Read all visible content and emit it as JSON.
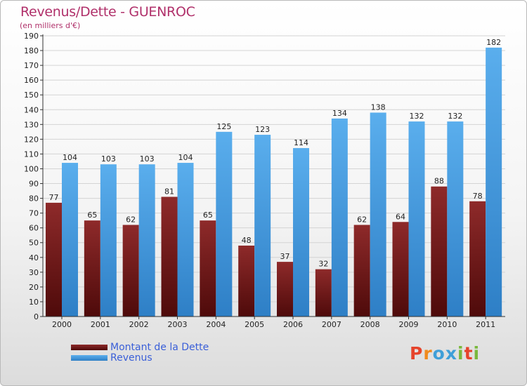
{
  "title": "Revenus/Dette - GUENROC",
  "subtitle": "(en milliers d'€)",
  "chart_data": {
    "type": "bar",
    "categories": [
      "2000",
      "2001",
      "2002",
      "2003",
      "2004",
      "2005",
      "2006",
      "2007",
      "2008",
      "2009",
      "2010",
      "2011"
    ],
    "series": [
      {
        "name": "Montant de la Dette",
        "values": [
          77,
          65,
          62,
          81,
          65,
          48,
          37,
          32,
          62,
          64,
          88,
          78
        ],
        "color": "#7a1f1f"
      },
      {
        "name": "Revenus",
        "values": [
          104,
          103,
          103,
          104,
          125,
          123,
          114,
          134,
          138,
          132,
          132,
          182
        ],
        "color": "#4a9ee3"
      }
    ],
    "ylim": [
      0,
      190
    ],
    "ytick_step": 10,
    "grid": true
  },
  "legend": {
    "debt_label": "Montant de la Dette",
    "revenue_label": "Revenus"
  },
  "logo": {
    "letters": [
      "P",
      "r",
      "o",
      "x",
      "i",
      "t",
      "i"
    ],
    "colors": [
      "#e6432b",
      "#f08a1c",
      "#3f9fd8",
      "#3f9fd8",
      "#79b83c",
      "#e6432b",
      "#79b83c"
    ]
  }
}
